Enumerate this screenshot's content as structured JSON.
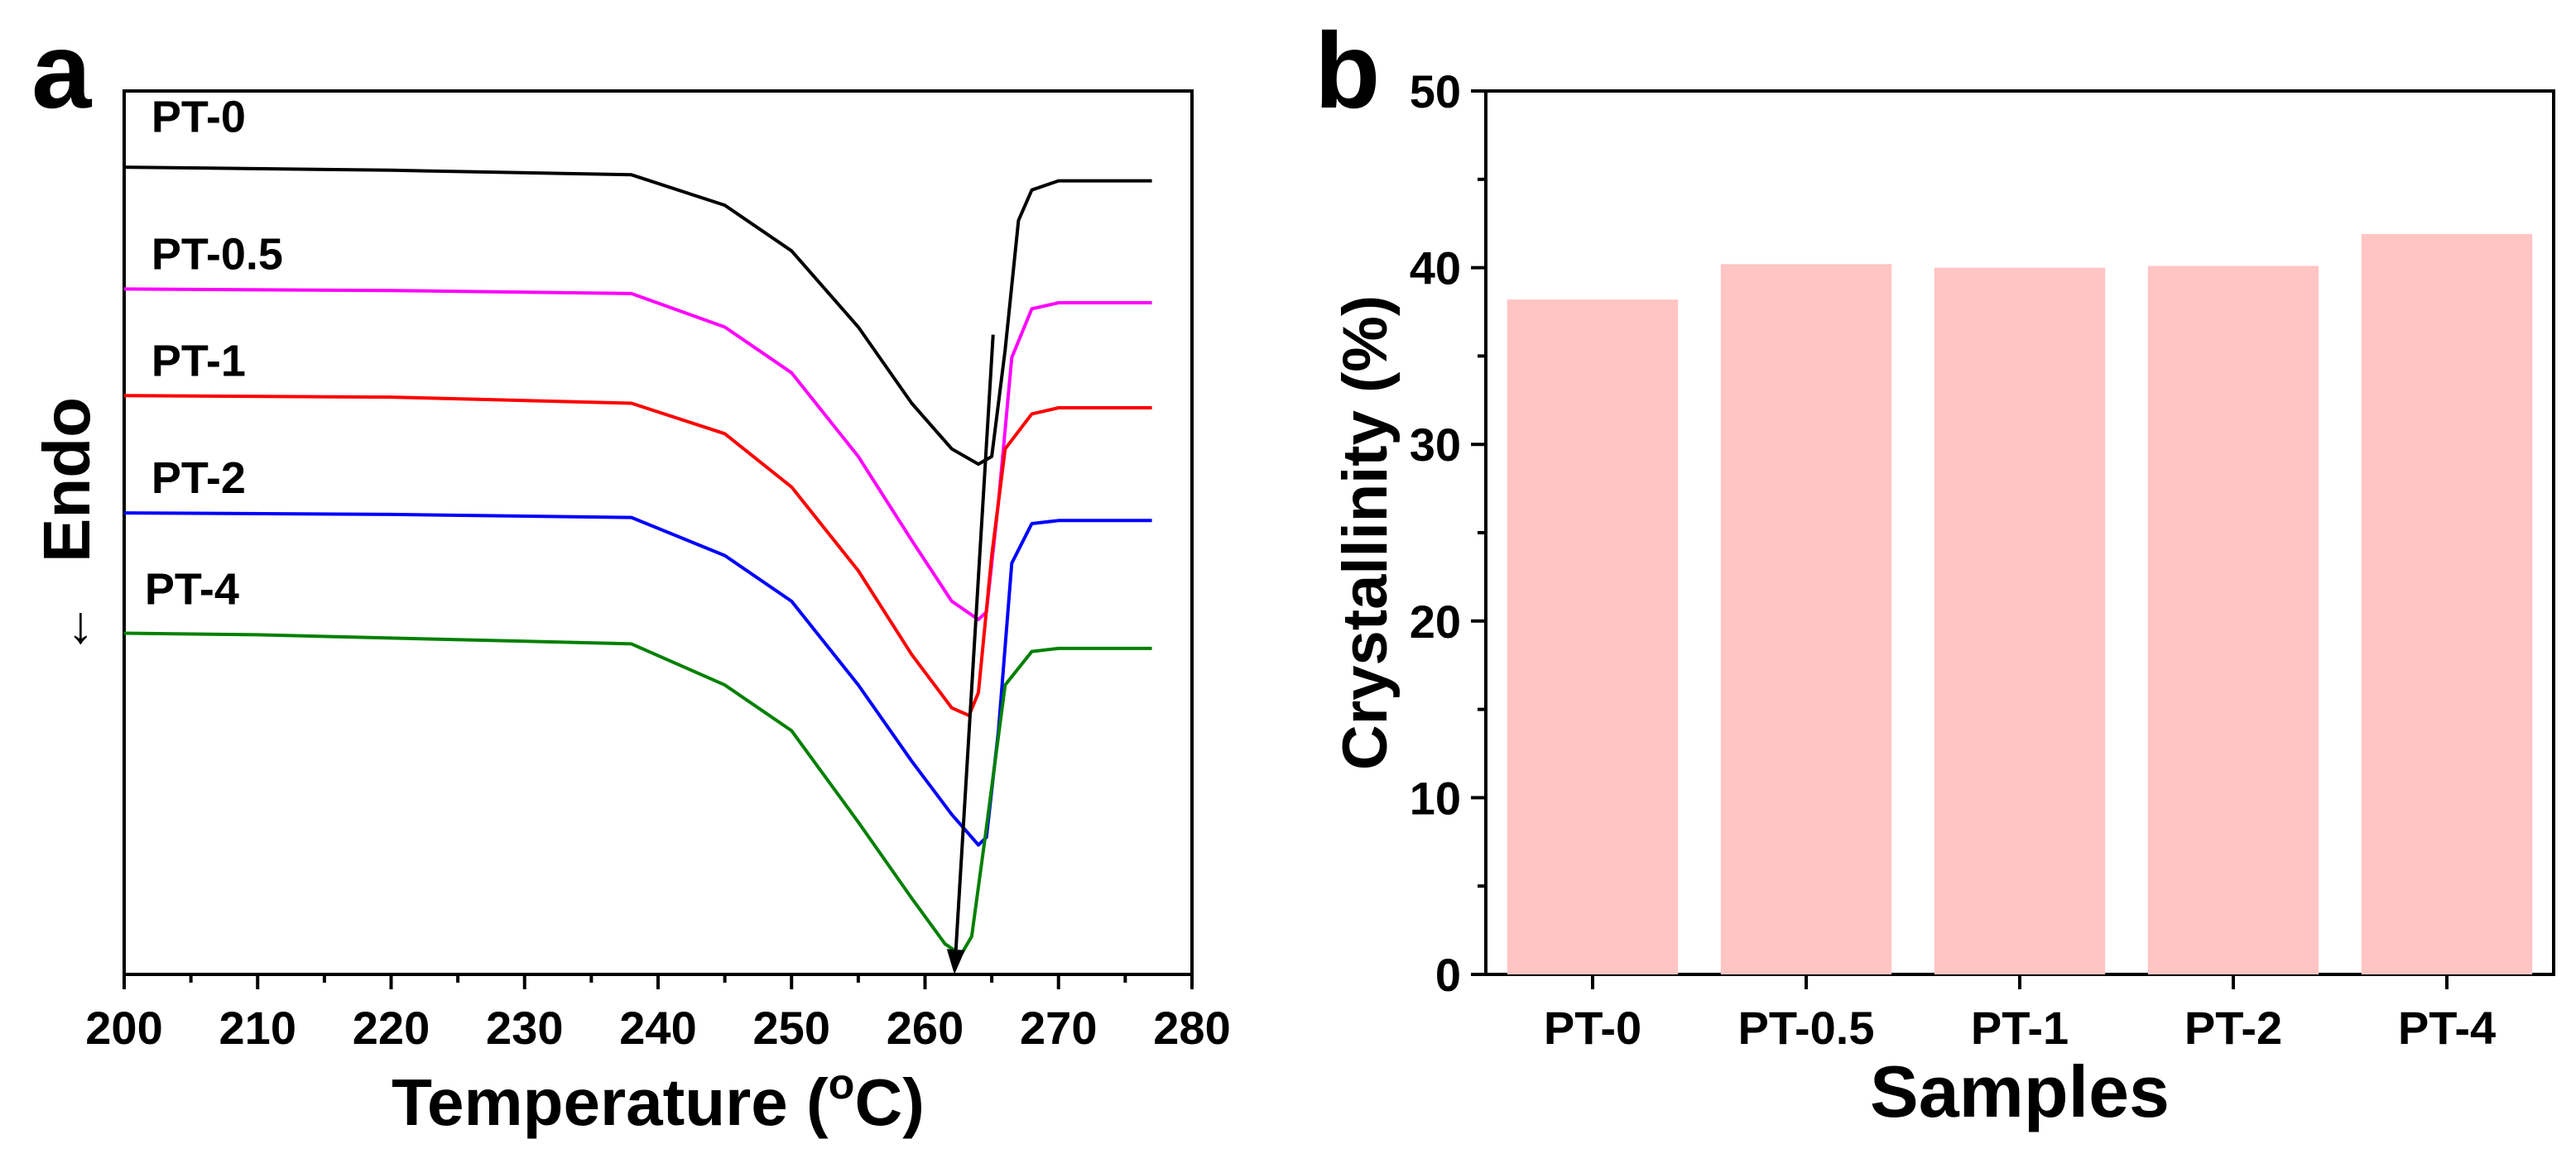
{
  "chart_data": [
    {
      "panel": "a",
      "type": "line",
      "xlabel": "Temperature (°C)",
      "xlabel_main": "Temperature (",
      "xlabel_sup": "o",
      "xlabel_unit": "C)",
      "ylabel": "Endo",
      "ylabel_arrow": "←",
      "xlim": [
        200,
        280
      ],
      "ylim": [
        -5.3,
        0.5
      ],
      "x_ticks": [
        "200",
        "210",
        "220",
        "230",
        "240",
        "250",
        "260",
        "270",
        "280"
      ],
      "grid": false,
      "series": [
        {
          "name": "PT-0",
          "color": "#000000",
          "label_at": [
            200.8,
            0.1
          ],
          "points": [
            [
              200,
              0
            ],
            [
              220,
              -0.02
            ],
            [
              238,
              -0.05
            ],
            [
              245,
              -0.25
            ],
            [
              250,
              -0.55
            ],
            [
              255,
              -1.05
            ],
            [
              259,
              -1.55
            ],
            [
              262,
              -1.85
            ],
            [
              264,
              -1.95
            ],
            [
              265,
              -1.9
            ],
            [
              266,
              -1.2
            ],
            [
              267,
              -0.35
            ],
            [
              268,
              -0.15
            ],
            [
              270,
              -0.09
            ],
            [
              277,
              -0.09
            ]
          ]
        },
        {
          "name": "PT-0.5",
          "color": "#ff00ff",
          "label_at": [
            200.8,
            -0.8
          ],
          "points": [
            [
              200,
              -0.8
            ],
            [
              220,
              -0.81
            ],
            [
              238,
              -0.83
            ],
            [
              245,
              -1.05
            ],
            [
              250,
              -1.35
            ],
            [
              255,
              -1.9
            ],
            [
              259,
              -2.45
            ],
            [
              262,
              -2.85
            ],
            [
              264,
              -2.97
            ],
            [
              264.6,
              -2.92
            ],
            [
              265.5,
              -2.2
            ],
            [
              266.5,
              -1.25
            ],
            [
              268,
              -0.93
            ],
            [
              270,
              -0.89
            ],
            [
              277,
              -0.89
            ]
          ]
        },
        {
          "name": "PT-1",
          "color": "#ff0000",
          "label_at": [
            200.8,
            -1.5
          ],
          "points": [
            [
              200,
              -1.5
            ],
            [
              220,
              -1.51
            ],
            [
              238,
              -1.55
            ],
            [
              245,
              -1.75
            ],
            [
              250,
              -2.1
            ],
            [
              255,
              -2.65
            ],
            [
              259,
              -3.2
            ],
            [
              262,
              -3.55
            ],
            [
              263.3,
              -3.6
            ],
            [
              264,
              -3.45
            ],
            [
              265,
              -2.55
            ],
            [
              266,
              -1.85
            ],
            [
              268,
              -1.62
            ],
            [
              270,
              -1.58
            ],
            [
              277,
              -1.58
            ]
          ]
        },
        {
          "name": "PT-2",
          "color": "#0000ff",
          "label_at": [
            200.8,
            -2.27
          ],
          "points": [
            [
              200,
              -2.27
            ],
            [
              220,
              -2.28
            ],
            [
              238,
              -2.3
            ],
            [
              245,
              -2.55
            ],
            [
              250,
              -2.85
            ],
            [
              255,
              -3.4
            ],
            [
              259,
              -3.9
            ],
            [
              262,
              -4.25
            ],
            [
              264,
              -4.45
            ],
            [
              264.6,
              -4.4
            ],
            [
              265.5,
              -3.7
            ],
            [
              266.5,
              -2.6
            ],
            [
              268,
              -2.34
            ],
            [
              270,
              -2.32
            ],
            [
              277,
              -2.32
            ]
          ]
        },
        {
          "name": "PT-4",
          "color": "#008000",
          "label_at": [
            200.3,
            -3.0
          ],
          "points": [
            [
              200,
              -3.06
            ],
            [
              210,
              -3.07
            ],
            [
              238,
              -3.13
            ],
            [
              245,
              -3.4
            ],
            [
              250,
              -3.7
            ],
            [
              255,
              -4.3
            ],
            [
              259,
              -4.8
            ],
            [
              261.5,
              -5.1
            ],
            [
              262.7,
              -5.17
            ],
            [
              263.5,
              -5.05
            ],
            [
              264.5,
              -4.4
            ],
            [
              266,
              -3.4
            ],
            [
              268,
              -3.18
            ],
            [
              270,
              -3.16
            ],
            [
              277,
              -3.16
            ]
          ]
        }
      ],
      "annotations": [
        {
          "type": "arrow",
          "from": [
            265.1,
            -1.1
          ],
          "to": [
            262.2,
            -5.3
          ],
          "color": "#000000"
        }
      ]
    },
    {
      "panel": "b",
      "type": "bar",
      "title": "",
      "xlabel": "Samples",
      "ylabel": "Crystallinity (%)",
      "ylim": [
        0,
        50
      ],
      "y_ticks": [
        "0",
        "10",
        "20",
        "30",
        "40",
        "50"
      ],
      "categories": [
        "PT-0",
        "PT-0.5",
        "PT-1",
        "PT-2",
        "PT-4"
      ],
      "values": [
        38.2,
        40.2,
        40.0,
        40.1,
        41.9
      ],
      "bar_color": "#ffc4c4",
      "grid": false
    }
  ]
}
